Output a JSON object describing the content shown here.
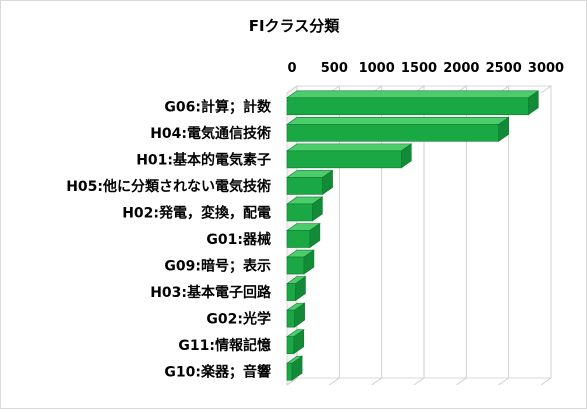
{
  "chart_data": {
    "type": "bar",
    "orientation": "horizontal",
    "style": "3d",
    "title": "FIクラス分類",
    "xlabel": "",
    "ylabel": "",
    "xlim": [
      0,
      3000
    ],
    "ticks": [
      0,
      500,
      1000,
      1500,
      2000,
      2500,
      3000
    ],
    "tick_labels": [
      "0",
      "500",
      "1000",
      "1500",
      "2000",
      "2500",
      "3000"
    ],
    "x_axis_position": "top",
    "grid": true,
    "legend": "none",
    "bar_color": "#1aa845",
    "categories": [
      "G06:計算；計数",
      "H04:電気通信技術",
      "H01:基本的電気素子",
      "H05:他に分類されない電気技術",
      "H02:発電，変換，配電",
      "G01:器械",
      "G09:暗号；表示",
      "H03:基本電子回路",
      "G02:光学",
      "G11:情報記憶",
      "G10:楽器；音響"
    ],
    "values": [
      2850,
      2500,
      1350,
      420,
      300,
      270,
      200,
      100,
      90,
      80,
      60
    ]
  }
}
